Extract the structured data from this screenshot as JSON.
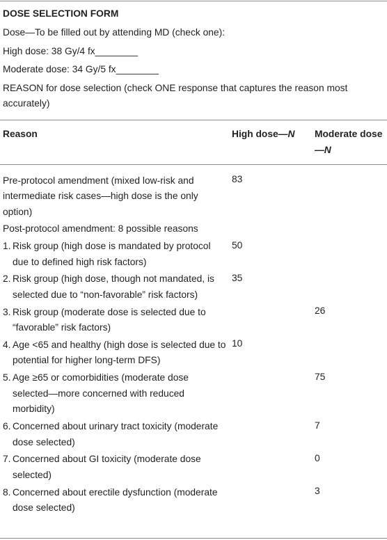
{
  "form": {
    "title": "DOSE SELECTION FORM",
    "lines": [
      "Dose—To be filled out by attending MD (check one):",
      "High dose: 38 Gy/4 fx________",
      "Moderate dose: 34 Gy/5 fx________",
      "REASON for dose selection (check ONE response that captures the reason most accurately)"
    ]
  },
  "table": {
    "header": {
      "reason": "Reason",
      "high": "High dose—",
      "high_n": "N",
      "moderate": "Moderate dose—",
      "moderate_n": "N"
    },
    "rows": [
      {
        "reason": "Pre-protocol amendment (mixed low-risk and intermediate risk cases—high dose is the only option)",
        "high": 83,
        "moderate": null
      },
      {
        "reason": "Post-protocol amendment: 8 possible reasons",
        "high": null,
        "moderate": null
      },
      {
        "num": "1.",
        "reason": "Risk group (high dose is mandated by protocol due to defined high risk factors)",
        "high": 50,
        "moderate": null
      },
      {
        "num": "2.",
        "reason": "Risk group (high dose, though not mandated, is selected due to “non-favorable” risk factors)",
        "high": 35,
        "moderate": null
      },
      {
        "num": "3.",
        "reason": "Risk group (moderate dose is selected due to “favorable” risk factors)",
        "high": null,
        "moderate": 26
      },
      {
        "num": "4.",
        "reason": "Age <65 and healthy (high dose is selected due to potential for higher long-term DFS)",
        "high": 10,
        "moderate": null
      },
      {
        "num": "5.",
        "reason": "Age ≥65 or comorbidities (moderate dose selected—more concerned with reduced morbidity)",
        "high": null,
        "moderate": 75
      },
      {
        "num": "6.",
        "reason": "Concerned about urinary tract toxicity (moderate dose selected)",
        "high": null,
        "moderate": 7
      },
      {
        "num": "7.",
        "reason": "Concerned about GI toxicity (moderate dose selected)",
        "high": null,
        "moderate": 0
      },
      {
        "num": "8.",
        "reason": "Concerned about erectile dysfunction (moderate dose selected)",
        "high": null,
        "moderate": 3
      }
    ]
  }
}
